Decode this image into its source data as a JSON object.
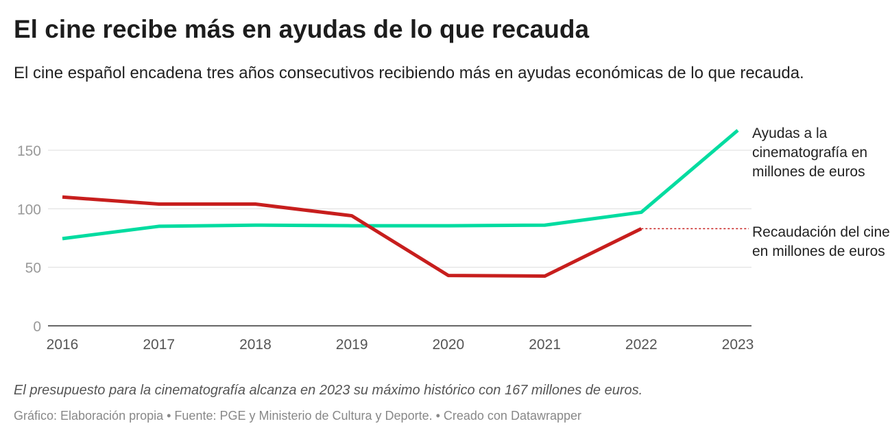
{
  "title": "El cine recibe más en ayudas de lo que recauda",
  "subtitle": "El cine español encadena tres años consecutivos recibiendo más en ayudas económicas de lo que recauda.",
  "note": "El presupuesto para la cinematografía alcanza en 2023 su máximo histórico con 167 millones de euros.",
  "credits": "Gráfico: Elaboración propia • Fuente: PGE y Ministerio de Cultura y Deporte. • Creado con Datawrapper",
  "chart_data": {
    "type": "line",
    "categories": [
      "2016",
      "2017",
      "2018",
      "2019",
      "2020",
      "2021",
      "2022",
      "2023"
    ],
    "ylim": [
      0,
      167
    ],
    "yticks": [
      0,
      50,
      100,
      150
    ],
    "grid": true,
    "series": [
      {
        "name": "Ayudas a la cinematografía en millones de euros",
        "color": "#00dca0",
        "values": [
          74.5,
          85,
          86,
          85.5,
          85.5,
          86,
          97,
          167
        ]
      },
      {
        "name": "Recaudación del cine en millones de euros",
        "color": "#c71e1d",
        "values": [
          110,
          104,
          104,
          94,
          43,
          42.5,
          83,
          null
        ]
      }
    ]
  }
}
